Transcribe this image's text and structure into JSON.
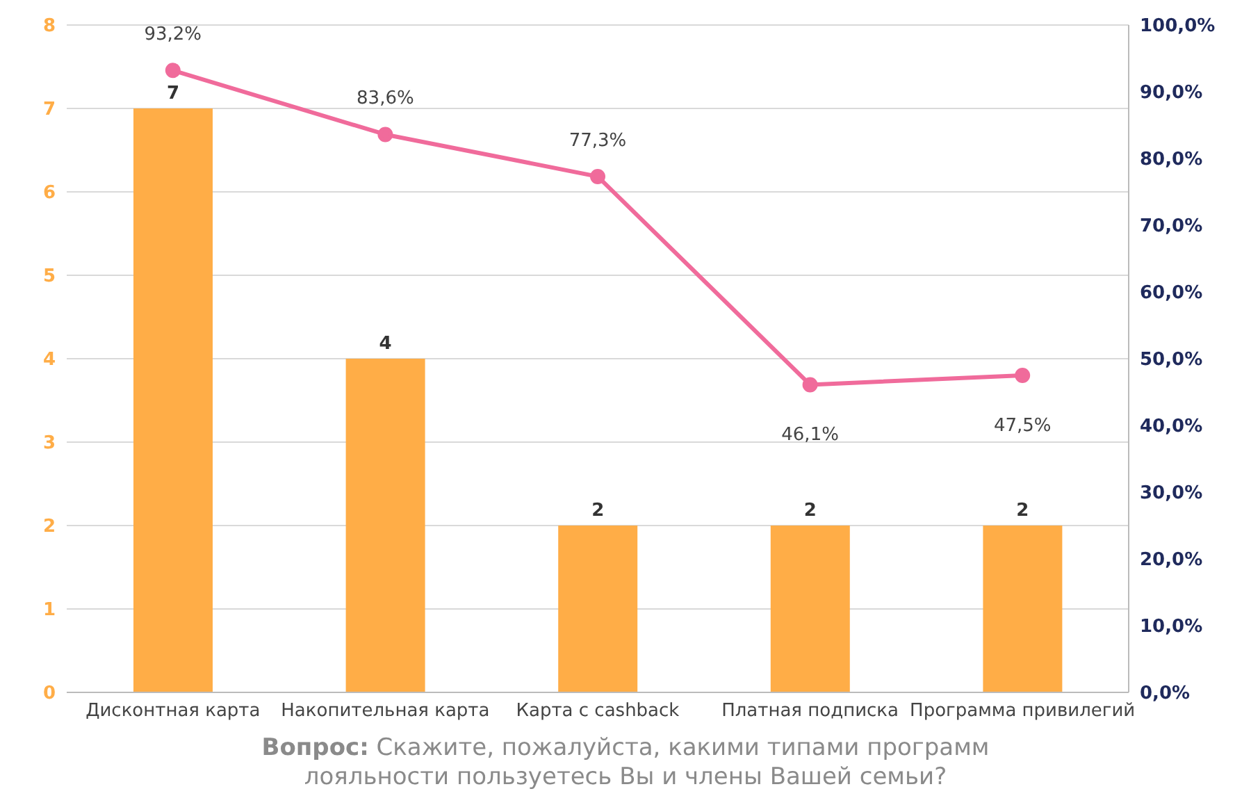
{
  "chart_data": {
    "type": "bar",
    "categories": [
      "Дисконтная карта",
      "Накопительная карта",
      "Карта с cashback",
      "Платная подписка",
      "Программа привилегий"
    ],
    "series": [
      {
        "color": "#ffad47",
        "values": [
          7,
          4,
          2,
          2,
          2
        ],
        "value_labels": [
          "7",
          "4",
          "2",
          "2",
          "2"
        ]
      },
      {
        "type": "line",
        "axis": "y2",
        "color": "#f06b9b",
        "values": [
          93.2,
          83.6,
          77.3,
          46.1,
          47.5
        ],
        "value_labels": [
          "93,2%",
          "83,6%",
          "77,3%",
          "46,1%",
          "47,5%"
        ]
      }
    ],
    "ylim": [
      0,
      8
    ],
    "yticks": [
      0,
      1,
      2,
      3,
      4,
      5,
      6,
      7,
      8
    ],
    "y2lim": [
      0,
      100
    ],
    "y2ticks": [
      {
        "value": 0,
        "label": "0,0%"
      },
      {
        "value": 10,
        "label": "10,0%"
      },
      {
        "value": 20,
        "label": "20,0%"
      },
      {
        "value": 30,
        "label": "30,0%"
      },
      {
        "value": 40,
        "label": "40,0%"
      },
      {
        "value": 50,
        "label": "50,0%"
      },
      {
        "value": 60,
        "label": "60,0%"
      },
      {
        "value": 70,
        "label": "70,0%"
      },
      {
        "value": 80,
        "label": "80,0%"
      },
      {
        "value": 90,
        "label": "90,0%"
      },
      {
        "value": 100,
        "label": "100,0%"
      }
    ],
    "grid": "y",
    "marker": "circle",
    "line_style": "solid",
    "legend": false,
    "annotations": [
      "Вопрос: Скажите, пожалуйста, какими типами программ лояльности пользуетесь Вы и члены Вашей семьи?"
    ]
  }
}
